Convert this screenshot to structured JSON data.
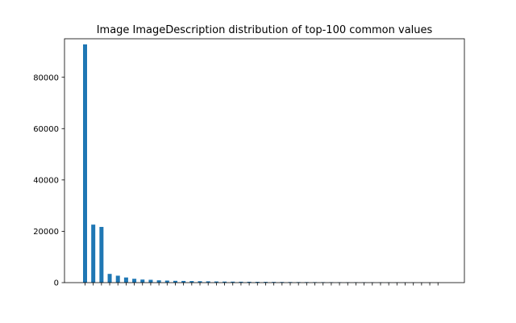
{
  "colors": {
    "bar": "#1f77b4",
    "axis": "#000000",
    "background": "#ffffff"
  },
  "chart_data": {
    "type": "bar",
    "title": "Image ImageDescription distribution of top-100 common values",
    "xlabel": "",
    "ylabel": "",
    "ylim": [
      0,
      95000
    ],
    "yticks": [
      0,
      20000,
      40000,
      60000,
      80000
    ],
    "ytick_labels": [
      "0",
      "20000",
      "40000",
      "60000",
      "80000"
    ],
    "x_tick_labels_shown": false,
    "grid": false,
    "legend": "none",
    "values": [
      92800,
      22600,
      21700,
      3400,
      2700,
      2000,
      1500,
      1200,
      1100,
      900,
      800,
      700,
      650,
      600,
      550,
      500,
      450,
      400,
      380,
      350,
      330,
      310,
      290,
      270,
      250,
      230,
      210,
      200,
      190,
      180,
      170,
      160,
      150,
      140,
      130,
      120,
      110,
      100,
      90,
      80,
      70,
      60,
      55,
      50
    ]
  }
}
